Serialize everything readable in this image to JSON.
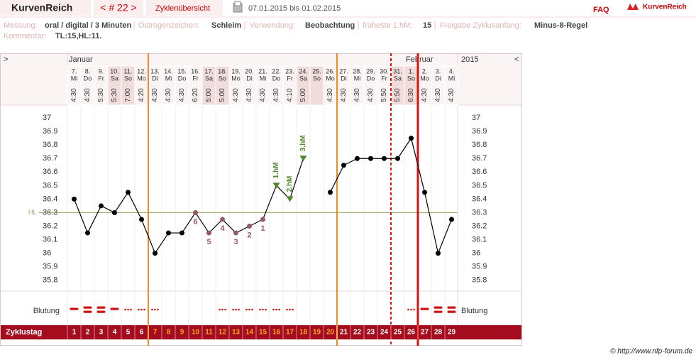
{
  "header": {
    "brand": "KurvenReich",
    "cycle_nav": "< # 22 >",
    "overview": "Zyklenübersicht",
    "period": "07.01.2015 bis 01.02.2015",
    "faq": "FAQ",
    "logo": "KurvenReich"
  },
  "info": [
    {
      "label": "Messung:",
      "value": "oral / digital / 3 Minuten"
    },
    {
      "label": "Östrogenzeichen:",
      "value": "Schleim"
    },
    {
      "label": "Verwendung:",
      "value": "Beobachtung"
    },
    {
      "label": "früheste 1.hM:",
      "value": "15"
    },
    {
      "label": "Freigabe Zyklusanfang:",
      "value": "Minus-8-Regel"
    }
  ],
  "comment": {
    "label": "Kommentar:",
    "value": "TL:15,HL:11."
  },
  "footer": "© http://www.nfp-forum.de",
  "chart_data": {
    "type": "line",
    "nav_left": ">",
    "nav_right": "<",
    "months": [
      "Januar",
      "Februar"
    ],
    "year": "2015",
    "dates": [
      "7.",
      "8.",
      "9.",
      "10.",
      "11.",
      "12.",
      "13.",
      "14.",
      "15.",
      "16.",
      "17.",
      "18.",
      "19.",
      "20.",
      "21.",
      "22.",
      "23.",
      "24.",
      "25.",
      "26.",
      "27.",
      "28.",
      "29.",
      "30.",
      "31.",
      "1.",
      "2.",
      "3.",
      "4."
    ],
    "weekdays": [
      "Mi",
      "Do",
      "Fr",
      "Sa",
      "So",
      "Mo",
      "Di",
      "Mi",
      "Do",
      "Fr",
      "Sa",
      "So",
      "Mo",
      "Di",
      "Mi",
      "Do",
      "Fr",
      "Sa",
      "So",
      "Mo",
      "Di",
      "Mi",
      "Do",
      "Fr",
      "Sa",
      "So",
      "Mo",
      "Di",
      "Mi"
    ],
    "times": [
      "4:30",
      "4:30",
      "5:30",
      "5:30",
      "7:00",
      "4:20",
      "4:30",
      "4:30",
      "4:30",
      "6:20",
      "5:00",
      "5:00",
      "4:30",
      "4:30",
      "4:30",
      "4:30",
      "4:10",
      "5:00",
      null,
      "4:30",
      "4:30",
      "4:30",
      "4:30",
      "5:50",
      "5:50",
      "6:30",
      "4:30",
      "4:30",
      "4:30"
    ],
    "values": [
      36.4,
      36.15,
      36.35,
      36.3,
      36.45,
      36.25,
      36.0,
      36.15,
      36.15,
      36.3,
      36.15,
      36.25,
      36.15,
      36.2,
      36.25,
      36.5,
      36.4,
      36.7,
      null,
      36.45,
      36.65,
      36.7,
      36.7,
      36.7,
      36.7,
      36.85,
      36.45,
      36.0,
      36.25
    ],
    "annotations": [
      null,
      null,
      null,
      null,
      null,
      null,
      null,
      null,
      null,
      "6",
      "5",
      "4",
      "3",
      "2",
      "1",
      "1.hM",
      "2.hM",
      "3.hM",
      null,
      null,
      null,
      null,
      null,
      null,
      null,
      null,
      null,
      null,
      null
    ],
    "color": "#000000",
    "low_color": "#9a5a62",
    "high_color": "#4f8a2a",
    "ylim": [
      35.72,
      37.1
    ],
    "yticks": [
      35.8,
      35.9,
      36,
      36.1,
      36.2,
      36.3,
      36.4,
      36.5,
      36.6,
      36.7,
      36.8,
      36.9,
      37
    ],
    "hl": 36.3,
    "hl_label": "HL",
    "hl_color": "#9aac6a",
    "bleeding_label": "Blutung",
    "bleeding": [
      "mittel",
      "stark",
      "stark",
      "mittel",
      "schwach",
      "schwach",
      "schwach",
      null,
      null,
      null,
      null,
      "schwach",
      "schwach",
      "schwach",
      "schwach",
      "schwach",
      "schwach",
      null,
      null,
      null,
      null,
      null,
      null,
      null,
      null,
      "schwach",
      "mittel",
      "stark",
      "stark"
    ],
    "bleeding_color": "#d01010",
    "cycle_day_label": "Zyklustag",
    "cycle_days": [
      1,
      2,
      3,
      4,
      5,
      6,
      7,
      8,
      9,
      10,
      11,
      12,
      13,
      14,
      15,
      16,
      17,
      18,
      19,
      20,
      21,
      22,
      23,
      24,
      25,
      26,
      27,
      28,
      29
    ],
    "vertical_lines": [
      {
        "after_cycle_day": 6,
        "color": "#f08c1e"
      },
      {
        "after_cycle_day": 20,
        "color": "#f08c1e"
      },
      {
        "after_cycle_day": 24,
        "color": "#dd1111",
        "dash": true
      },
      {
        "after_cycle_day": 26,
        "color": "#dd1111",
        "width": 3
      }
    ]
  }
}
